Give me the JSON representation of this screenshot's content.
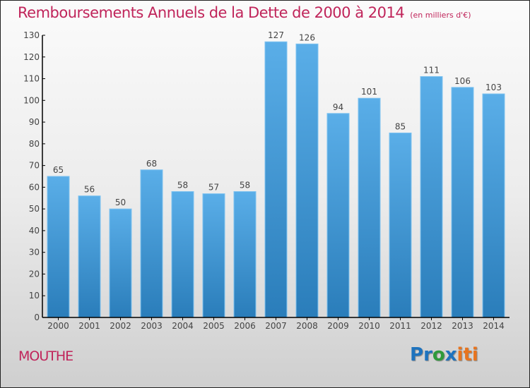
{
  "header": {
    "title": "Remboursements Annuels de la Dette de 2000 à 2014",
    "unit": "(en milliers d'€)"
  },
  "footer": {
    "city": "MOUTHE",
    "logo": {
      "letters": [
        "P",
        "r",
        "o",
        "x",
        "i",
        "t",
        "i"
      ],
      "colors": [
        "#1e73be",
        "#1e73be",
        "#2e9a3a",
        "#1e73be",
        "#e8741e",
        "#e8741e",
        "#e8741e"
      ]
    }
  },
  "chart_data": {
    "type": "bar",
    "title": "Remboursements Annuels de la Dette de 2000 à 2014",
    "subtitle": "(en milliers d'€)",
    "xlabel": "",
    "ylabel": "",
    "categories": [
      "2000",
      "2001",
      "2002",
      "2003",
      "2004",
      "2005",
      "2006",
      "2007",
      "2008",
      "2009",
      "2010",
      "2011",
      "2012",
      "2013",
      "2014"
    ],
    "values": [
      65,
      56,
      50,
      68,
      58,
      57,
      58,
      127,
      126,
      94,
      101,
      85,
      111,
      106,
      103
    ],
    "ylim": [
      0,
      130
    ],
    "yticks": [
      0,
      10,
      20,
      30,
      40,
      50,
      60,
      70,
      80,
      90,
      100,
      110,
      120,
      130
    ],
    "grid": false,
    "bar_color_top": "#5aaee8",
    "bar_color_bottom": "#2a7dba",
    "data_labels": true
  }
}
